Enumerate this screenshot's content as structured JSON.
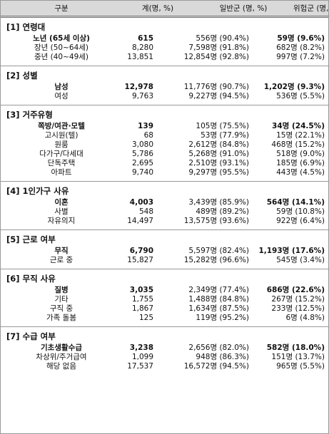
{
  "header": [
    "구분",
    "계(명, %)",
    "일반군 (명, %)",
    "위험군 (명, %)"
  ],
  "sections": [
    {
      "title": "[1] 연령대",
      "rows": [
        {
          "cells": [
            "노년 (65세 이상)",
            "615",
            "556명 (90.4%)",
            "59명 (9.6%)"
          ],
          "bold": true
        },
        {
          "cells": [
            "장년 (50~64세)",
            "8,280",
            "7,598명 (91.8%)",
            "682명 (8.2%)"
          ]
        },
        {
          "cells": [
            "중년 (40~49세)",
            "13,851",
            "12,854명 (92.8%)",
            "997명 (7.2%)"
          ]
        }
      ]
    },
    {
      "title": "[2] 성별",
      "rows": [
        {
          "cells": [
            "남성",
            "12,978",
            "11,776명 (90.7%)",
            "1,202명 (9.3%)"
          ],
          "bold": true
        },
        {
          "cells": [
            "여성",
            "9,763",
            "9,227명 (94.5%)",
            "536명 (5.5%)"
          ]
        }
      ]
    },
    {
      "title": "[3] 거주유형",
      "rows": [
        {
          "cells": [
            "쪽방/여관·모텔",
            "139",
            "105명 (75.5%)",
            "34명 (24.5%)"
          ],
          "bold": true
        },
        {
          "cells": [
            "고시원(텔)",
            "68",
            "53명 (77.9%)",
            "15명 (22.1%)"
          ]
        },
        {
          "cells": [
            "원룸",
            "3,080",
            "2,612명 (84.8%)",
            "468명 (15.2%)"
          ]
        },
        {
          "cells": [
            "다가구/다세대",
            "5,786",
            "5,268명 (91.0%)",
            "518명 (9.0%)"
          ]
        },
        {
          "cells": [
            "단독주택",
            "2,695",
            "2,510명 (93.1%)",
            "185명 (6.9%)"
          ]
        },
        {
          "cells": [
            "아파트",
            "9,740",
            "9,297명 (95.5%)",
            "443명 (4.5%)"
          ]
        }
      ]
    },
    {
      "title": "[4] 1인가구 사유",
      "rows": [
        {
          "cells": [
            "이혼",
            "4,003",
            "3,439명 (85.9%)",
            "564명 (14.1%)"
          ],
          "bold": true
        },
        {
          "cells": [
            "사별",
            "548",
            "489명 (89.2%)",
            "59명 (10.8%)"
          ]
        },
        {
          "cells": [
            "자유의지",
            "14,497",
            "13,575명 (93.6%)",
            "922명 (6.4%)"
          ]
        }
      ]
    },
    {
      "title": "[5] 근로 여부",
      "rows": [
        {
          "cells": [
            "무직",
            "6,790",
            "5,597명 (82.4%)",
            "1,193명 (17.6%)"
          ],
          "bold": true
        },
        {
          "cells": [
            "근로 중",
            "15,827",
            "15,282명 (96.6%)",
            "545명 (3.4%)"
          ]
        }
      ]
    },
    {
      "title": "[6] 무직 사유",
      "rows": [
        {
          "cells": [
            "질병",
            "3,035",
            "2,349명 (77.4%)",
            "686명 (22.6%)"
          ],
          "bold": true
        },
        {
          "cells": [
            "기타",
            "1,755",
            "1,488명 (84.8%)",
            "267명 (15.2%)"
          ]
        },
        {
          "cells": [
            "구직 중",
            "1,867",
            "1,634명 (87.5%)",
            "233명 (12.5%)"
          ]
        },
        {
          "cells": [
            "가족 돌봄",
            "125",
            "119명 (95.2%)",
            "6명 (4.8%)"
          ]
        }
      ]
    },
    {
      "title": "[7] 수급 여부",
      "rows": [
        {
          "cells": [
            "기초생활수급",
            "3,238",
            "2,656명 (82.0%)",
            "582명 (18.0%)"
          ],
          "bold": true
        },
        {
          "cells": [
            "차상위/주거급여",
            "1,099",
            "948명 (86.3%)",
            "151명 (13.7%)"
          ]
        },
        {
          "cells": [
            "해당 없음",
            "17,537",
            "16,572명 (94.5%)",
            "965명 (5.5%)"
          ]
        }
      ]
    }
  ]
}
